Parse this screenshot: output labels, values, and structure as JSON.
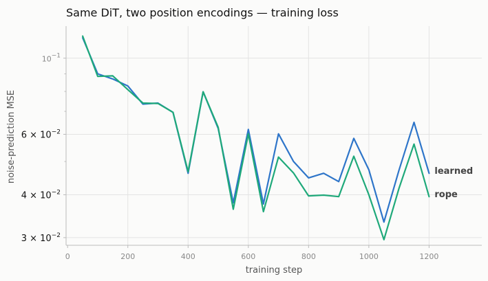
{
  "chart_data": {
    "type": "line",
    "title": "Same DiT, two position encodings — training loss",
    "xlabel": "training step",
    "ylabel": "noise-prediction MSE",
    "xlim": [
      -5,
      1375
    ],
    "ylim": [
      0.0285,
      0.124
    ],
    "yscale": "log",
    "grid": true,
    "x_ticks": [
      "0",
      "200",
      "400",
      "600",
      "800",
      "1000",
      "1200"
    ],
    "y_ticks": [
      "10",
      "6 × 10",
      "4 × 10",
      "3 × 10"
    ],
    "y_tick_exponents": [
      "−1",
      "−2",
      "−2",
      "−2"
    ],
    "x": [
      50,
      100,
      150,
      200,
      250,
      300,
      350,
      400,
      450,
      500,
      550,
      600,
      650,
      700,
      750,
      800,
      850,
      900,
      950,
      1000,
      1050,
      1100,
      1150,
      1200
    ],
    "series": [
      {
        "name": "learned",
        "color": "#2e75c9",
        "values": [
          0.1147,
          0.09,
          0.087,
          0.083,
          0.0735,
          0.074,
          0.0695,
          0.0462,
          0.0798,
          0.0624,
          0.0379,
          0.062,
          0.0376,
          0.0602,
          0.05,
          0.0448,
          0.0462,
          0.0437,
          0.0584,
          0.0473,
          0.0333,
          0.0471,
          0.065,
          0.0462
        ]
      },
      {
        "name": "rope",
        "color": "#1fa97a",
        "values": [
          0.116,
          0.0885,
          0.0888,
          0.081,
          0.074,
          0.0738,
          0.0695,
          0.0467,
          0.0798,
          0.0629,
          0.0363,
          0.0602,
          0.0357,
          0.0515,
          0.0463,
          0.0397,
          0.0399,
          0.0395,
          0.0518,
          0.04,
          0.0296,
          0.0417,
          0.0562,
          0.0395
        ]
      }
    ]
  }
}
